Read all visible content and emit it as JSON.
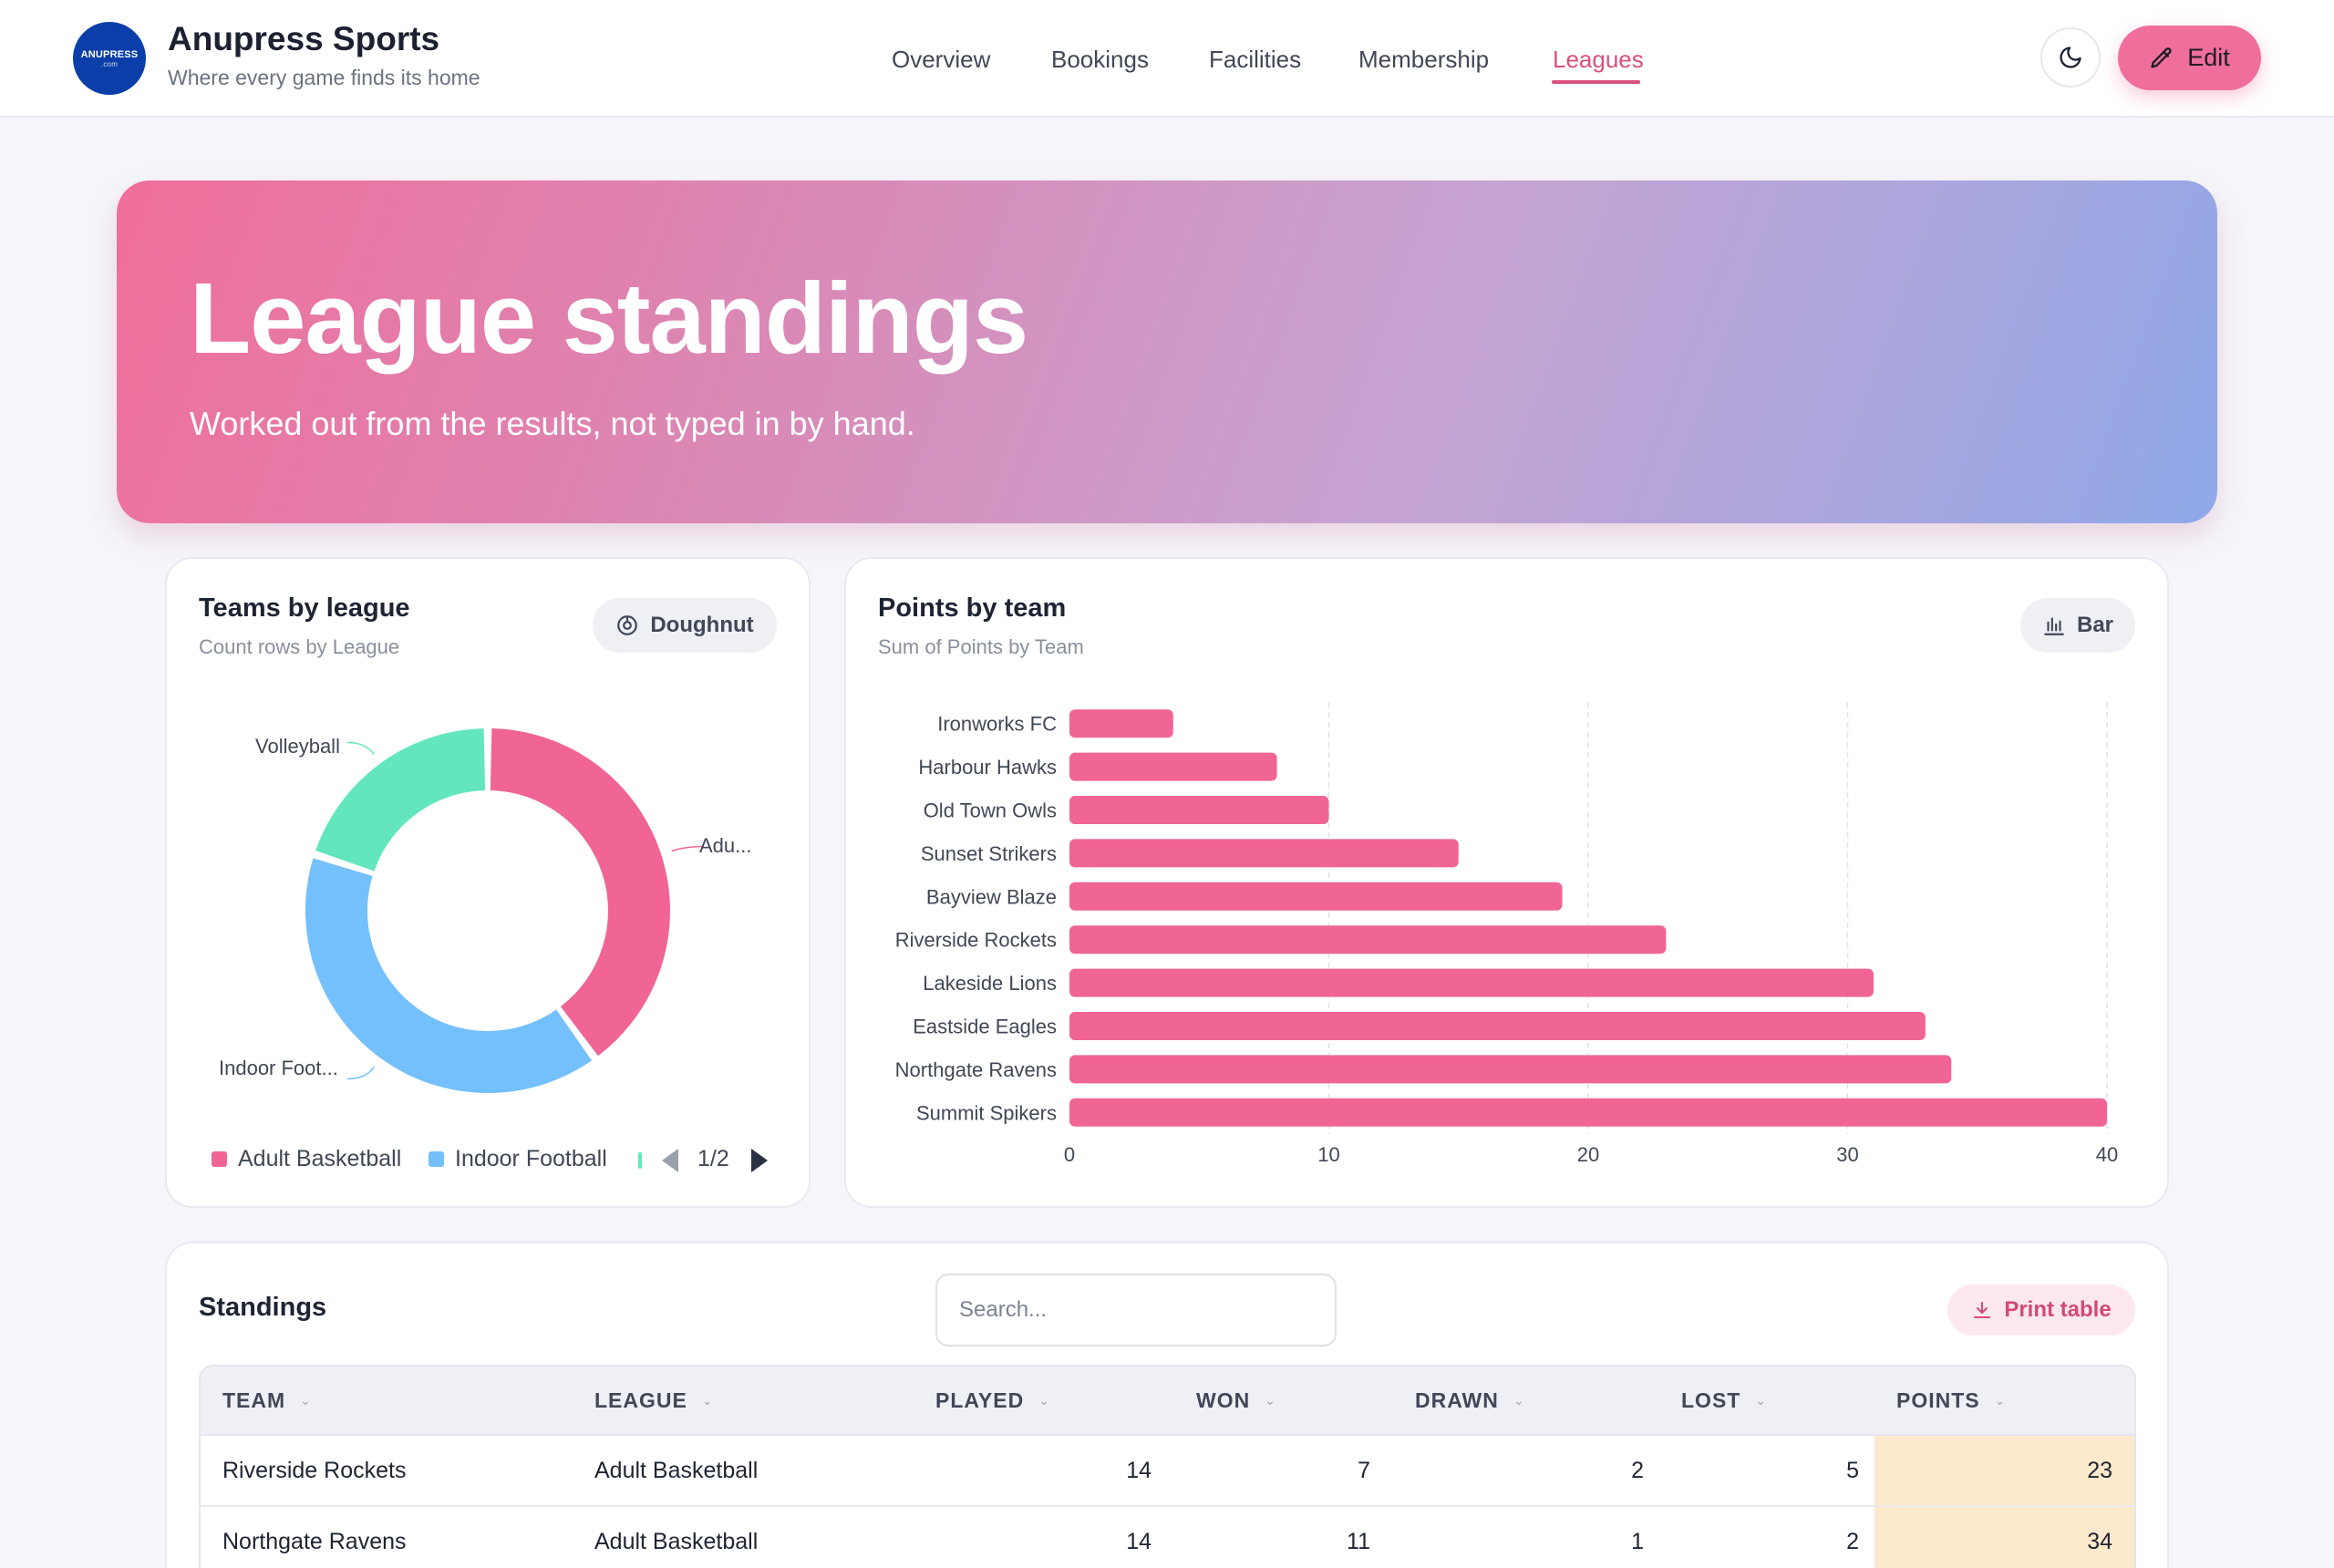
{
  "app": {
    "logo_text": "ANUPRESS",
    "logo_sub": ".com",
    "name": "Anupress Sports",
    "tagline": "Where every game finds its home"
  },
  "nav": {
    "items": [
      {
        "label": "Overview"
      },
      {
        "label": "Bookings"
      },
      {
        "label": "Facilities"
      },
      {
        "label": "Membership"
      },
      {
        "label": "Leagues",
        "active": true
      }
    ],
    "edit_label": "Edit"
  },
  "hero": {
    "title": "League standings",
    "subtitle": "Worked out from the results, not typed in by hand."
  },
  "donut_card": {
    "title": "Teams by league",
    "subtitle": "Count rows by League",
    "toggle_label": "Doughnut",
    "slice_labels": {
      "adult_basketball": "Adu...",
      "indoor_football": "Indoor Foot...",
      "volleyball": "Volleyball"
    },
    "legend": [
      {
        "label": "Adult Basketball",
        "color": "#f06595"
      },
      {
        "label": "Indoor Football",
        "color": "#74c0fc"
      }
    ],
    "legend_page": "1/2"
  },
  "bar_card": {
    "title": "Points by team",
    "subtitle": "Sum of Points by Team",
    "toggle_label": "Bar"
  },
  "chart_data": [
    {
      "type": "pie",
      "title": "Teams by league",
      "labels": [
        "Adult Basketball",
        "Indoor Football",
        "Volleyball"
      ],
      "values": [
        4,
        4,
        2
      ],
      "colors": [
        "#f06595",
        "#74c0fc",
        "#63e6be"
      ]
    },
    {
      "type": "bar",
      "orientation": "horizontal",
      "title": "Points by team",
      "categories": [
        "Ironworks FC",
        "Harbour Hawks",
        "Old Town Owls",
        "Sunset Strikers",
        "Bayview Blaze",
        "Riverside Rockets",
        "Lakeside Lions",
        "Eastside Eagles",
        "Northgate Ravens",
        "Summit Spikers"
      ],
      "values": [
        4,
        8,
        10,
        15,
        19,
        23,
        31,
        33,
        34,
        40
      ],
      "xlim": [
        0,
        40
      ],
      "ticks": [
        "0",
        "10",
        "20",
        "30",
        "40"
      ],
      "color": "#f06595",
      "grid": true
    }
  ],
  "standings": {
    "title": "Standings",
    "search_placeholder": "Search...",
    "print_label": "Print table",
    "columns": [
      "TEAM",
      "LEAGUE",
      "PLAYED",
      "WON",
      "DRAWN",
      "LOST",
      "POINTS"
    ],
    "rows": [
      [
        "Riverside Rockets",
        "Adult Basketball",
        "14",
        "7",
        "2",
        "5",
        "23"
      ],
      [
        "Northgate Ravens",
        "Adult Basketball",
        "14",
        "11",
        "1",
        "2",
        "34"
      ]
    ]
  }
}
